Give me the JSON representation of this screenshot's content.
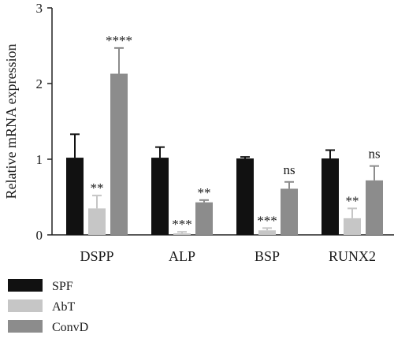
{
  "chart_data": {
    "type": "bar",
    "ylabel": "Relative mRNA expression",
    "xlabel": "",
    "ylim": [
      0,
      3
    ],
    "yticks": [
      0,
      1,
      2,
      3
    ],
    "categories": [
      "DSPP",
      "ALP",
      "BSP",
      "RUNX2"
    ],
    "series": [
      {
        "name": "SPF",
        "color": "#111111",
        "values": [
          1.02,
          1.02,
          1.01,
          1.01
        ],
        "errors": [
          0.31,
          0.14,
          0.02,
          0.11
        ]
      },
      {
        "name": "AbT",
        "color": "#c6c6c6",
        "values": [
          0.35,
          0.02,
          0.06,
          0.22
        ],
        "errors": [
          0.17,
          0.02,
          0.03,
          0.13
        ]
      },
      {
        "name": "ConvD",
        "color": "#8c8c8c",
        "values": [
          2.13,
          0.43,
          0.61,
          0.72
        ],
        "errors": [
          0.34,
          0.03,
          0.09,
          0.19
        ]
      }
    ],
    "annotations": [
      {
        "category": 0,
        "series": 1,
        "text": "**"
      },
      {
        "category": 0,
        "series": 2,
        "text": "****"
      },
      {
        "category": 1,
        "series": 1,
        "text": "***"
      },
      {
        "category": 1,
        "series": 2,
        "text": "**"
      },
      {
        "category": 2,
        "series": 1,
        "text": "***"
      },
      {
        "category": 2,
        "series": 2,
        "text": "ns"
      },
      {
        "category": 3,
        "series": 1,
        "text": "**"
      },
      {
        "category": 3,
        "series": 2,
        "text": "ns"
      }
    ],
    "legend_position": "bottom-left",
    "grid": false
  }
}
